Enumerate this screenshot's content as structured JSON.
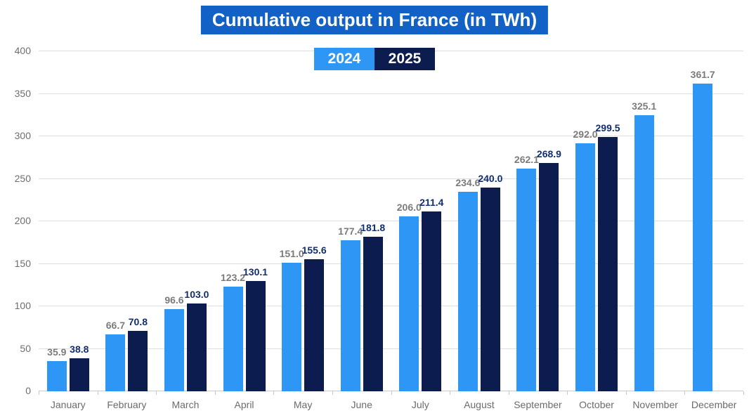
{
  "title": "Cumulative output in France (in TWh)",
  "title_bg_color": "#1261C7",
  "legend": {
    "items": [
      {
        "label": "2024",
        "color": "#2E96F5"
      },
      {
        "label": "2025",
        "color": "#0C1C4F"
      }
    ]
  },
  "chart_data": {
    "type": "bar",
    "title": "Cumulative output in France (in TWh)",
    "categories": [
      "January",
      "February",
      "March",
      "April",
      "May",
      "June",
      "July",
      "August",
      "September",
      "October",
      "November",
      "December"
    ],
    "series": [
      {
        "name": "2024",
        "color": "#2E96F5",
        "label_color": "#7B7B7B",
        "values": [
          35.9,
          66.7,
          96.6,
          123.2,
          151.0,
          177.4,
          206.0,
          234.6,
          262.1,
          292.0,
          325.1,
          361.7
        ]
      },
      {
        "name": "2025",
        "color": "#0C1C4F",
        "label_color": "#132E6D",
        "values": [
          38.8,
          70.8,
          103.0,
          130.1,
          155.6,
          181.8,
          211.4,
          240.0,
          268.9,
          299.5,
          null,
          null
        ]
      }
    ],
    "xlabel": "",
    "ylabel": "",
    "ylim": [
      0,
      400
    ],
    "ytick_step": 50,
    "grid": true,
    "legend_position": "top-center",
    "value_labels_decimals": 1
  }
}
